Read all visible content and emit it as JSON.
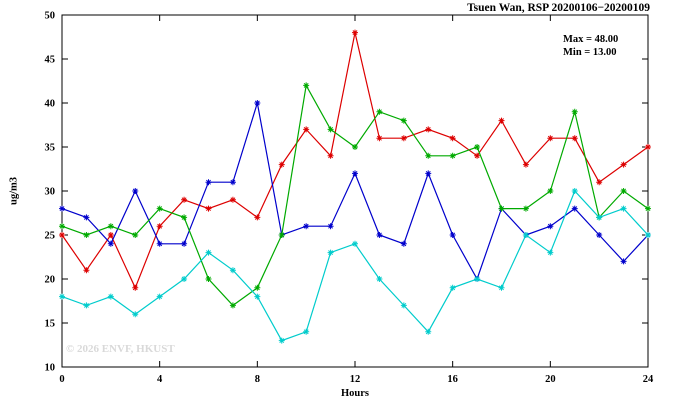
{
  "header": {
    "title": "Tsuen Wan, RSP 20200106−20200109"
  },
  "annotations": {
    "max": "Max = 48.00",
    "min": "Min = 13.00"
  },
  "axes": {
    "ylabel": "ug/m3",
    "xlabel": "Hours"
  },
  "watermark": "© 2026 ENVF, HKUST",
  "chart_data": {
    "type": "line",
    "title": "Tsuen Wan, RSP 20200106−20200109",
    "xlabel": "Hours",
    "ylabel": "ug/m3",
    "xlim": [
      0,
      24
    ],
    "ylim": [
      10,
      50
    ],
    "xticks": [
      0,
      4,
      8,
      12,
      16,
      20,
      24
    ],
    "yticks": [
      10,
      15,
      20,
      25,
      30,
      35,
      40,
      45,
      50
    ],
    "grid": false,
    "legend_position": "none",
    "annotations": [
      "Max = 48.00",
      "Min = 13.00"
    ],
    "marker": "asterisk",
    "x": [
      0,
      1,
      2,
      3,
      4,
      5,
      6,
      7,
      8,
      9,
      10,
      11,
      12,
      13,
      14,
      15,
      16,
      17,
      18,
      19,
      20,
      21,
      22,
      23,
      24
    ],
    "series": [
      {
        "name": "red",
        "color": "#dd0000",
        "values": [
          25,
          21,
          25,
          19,
          26,
          29,
          28,
          29,
          27,
          33,
          37,
          34,
          48,
          36,
          36,
          37,
          36,
          34,
          38,
          33,
          36,
          36,
          31,
          33,
          35
        ]
      },
      {
        "name": "blue",
        "color": "#0000cc",
        "values": [
          28,
          27,
          24,
          30,
          24,
          24,
          31,
          31,
          40,
          25,
          26,
          26,
          32,
          25,
          24,
          32,
          25,
          20,
          28,
          25,
          26,
          28,
          25,
          22,
          25
        ]
      },
      {
        "name": "green",
        "color": "#00aa00",
        "values": [
          26,
          25,
          26,
          25,
          28,
          27,
          20,
          17,
          19,
          25,
          42,
          37,
          35,
          39,
          38,
          34,
          34,
          35,
          28,
          28,
          30,
          39,
          27,
          30,
          28
        ]
      },
      {
        "name": "cyan",
        "color": "#00cccc",
        "values": [
          18,
          17,
          18,
          16,
          18,
          20,
          23,
          21,
          18,
          13,
          14,
          23,
          24,
          20,
          17,
          14,
          19,
          20,
          19,
          25,
          23,
          30,
          27,
          28,
          25
        ]
      }
    ]
  }
}
